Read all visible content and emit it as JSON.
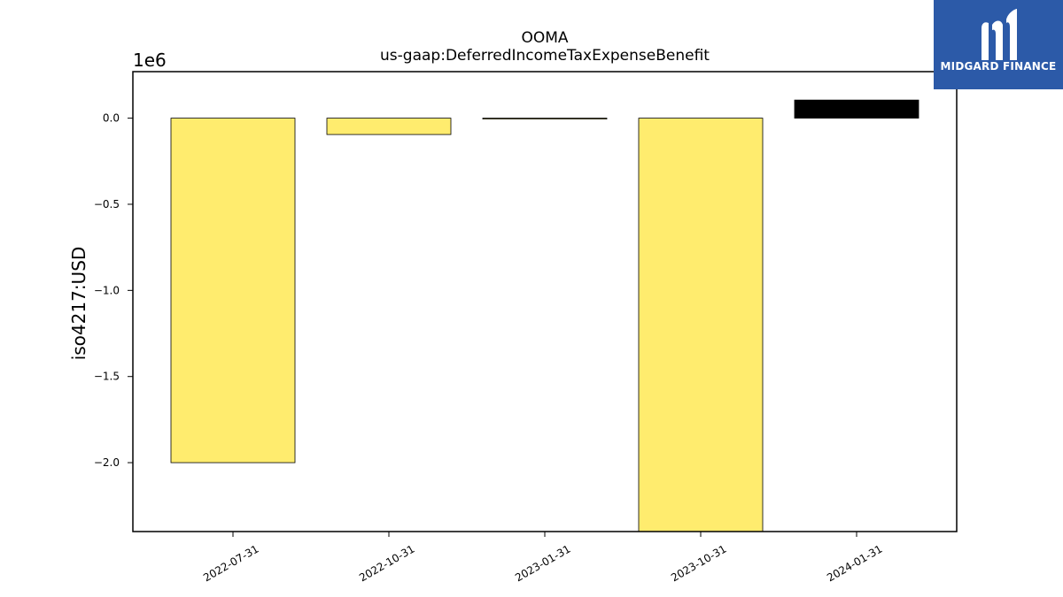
{
  "chart_data": {
    "type": "bar",
    "title": "OOMA",
    "subtitle": "us-gaap:DeferredIncomeTaxExpenseBenefit",
    "xlabel": "",
    "ylabel": "iso4217:USD",
    "y_multiplier_label": "1e6",
    "categories": [
      "2022-07-31",
      "2022-10-31",
      "2023-01-31",
      "2023-10-31",
      "2024-01-31"
    ],
    "values": [
      -2000000,
      -95000,
      -2000,
      -2400000,
      105000
    ],
    "bar_colors": [
      "#ffec6e",
      "#ffec6e",
      "#ffec6e",
      "#ffec6e",
      "#000000"
    ],
    "ylim": [
      -2400000,
      270000
    ],
    "yticks": [
      0,
      -500000,
      -1000000,
      -1500000,
      -2000000
    ],
    "ytick_labels": [
      "0.0",
      "−0.5",
      "−1.0",
      "−1.5",
      "−2.0"
    ],
    "grid": false,
    "legend": "none"
  },
  "logo": {
    "text": "MIDGARD FINANCE",
    "background": "#2c5aa8"
  }
}
